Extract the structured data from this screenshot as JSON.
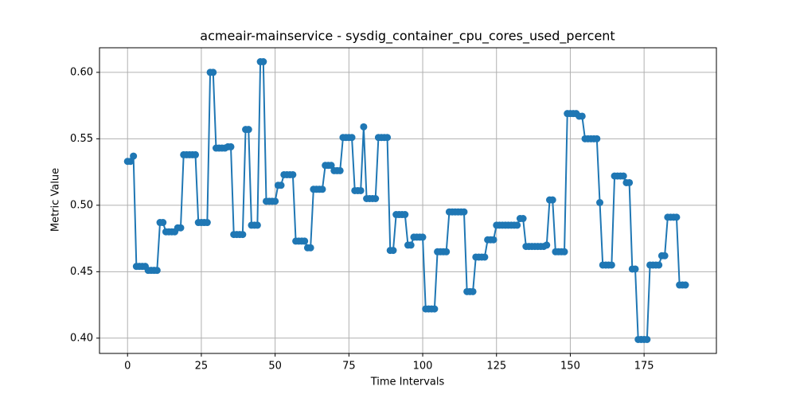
{
  "chart_data": {
    "type": "line",
    "title": "acmeair-mainservice - sysdig_container_cpu_cores_used_percent",
    "x_label": "Time Intervals",
    "y_label": "Metric Value",
    "x": [
      0,
      1,
      2,
      3,
      4,
      5,
      6,
      7,
      8,
      9,
      10,
      11,
      12,
      13,
      14,
      15,
      16,
      17,
      18,
      19,
      20,
      21,
      22,
      23,
      24,
      25,
      26,
      27,
      28,
      29,
      30,
      31,
      32,
      33,
      34,
      35,
      36,
      37,
      38,
      39,
      40,
      41,
      42,
      43,
      44,
      45,
      46,
      47,
      48,
      49,
      50,
      51,
      52,
      53,
      54,
      55,
      56,
      57,
      58,
      59,
      60,
      61,
      62,
      63,
      64,
      65,
      66,
      67,
      68,
      69,
      70,
      71,
      72,
      73,
      74,
      75,
      76,
      77,
      78,
      79,
      80,
      81,
      82,
      83,
      84,
      85,
      86,
      87,
      88,
      89,
      90,
      91,
      92,
      93,
      94,
      95,
      96,
      97,
      98,
      99,
      100,
      101,
      102,
      103,
      104,
      105,
      106,
      107,
      108,
      109,
      110,
      111,
      112,
      113,
      114,
      115,
      116,
      117,
      118,
      119,
      120,
      121,
      122,
      123,
      124,
      125,
      126,
      127,
      128,
      129,
      130,
      131,
      132,
      133,
      134,
      135,
      136,
      137,
      138,
      139,
      140,
      141,
      142,
      143,
      144,
      145,
      146,
      147,
      148,
      149,
      150,
      151,
      152,
      153,
      154,
      155,
      156,
      157,
      158,
      159,
      160,
      161,
      162,
      163,
      164,
      165,
      166,
      167,
      168,
      169,
      170,
      171,
      172,
      173,
      174,
      175,
      176,
      177,
      178,
      179,
      180,
      181,
      182,
      183,
      184,
      185,
      186,
      187,
      188,
      189
    ],
    "series": [
      {
        "name": "acmeair-mainservice",
        "color": "#1f77b4",
        "values": [
          0.533,
          0.533,
          0.537,
          0.454,
          0.454,
          0.454,
          0.454,
          0.451,
          0.451,
          0.451,
          0.451,
          0.487,
          0.487,
          0.48,
          0.48,
          0.48,
          0.48,
          0.483,
          0.483,
          0.538,
          0.538,
          0.538,
          0.538,
          0.538,
          0.487,
          0.487,
          0.487,
          0.487,
          0.6,
          0.6,
          0.543,
          0.543,
          0.543,
          0.543,
          0.544,
          0.544,
          0.478,
          0.478,
          0.478,
          0.478,
          0.557,
          0.557,
          0.485,
          0.485,
          0.485,
          0.608,
          0.608,
          0.503,
          0.503,
          0.503,
          0.503,
          0.515,
          0.515,
          0.523,
          0.523,
          0.523,
          0.523,
          0.473,
          0.473,
          0.473,
          0.473,
          0.468,
          0.468,
          0.512,
          0.512,
          0.512,
          0.512,
          0.53,
          0.53,
          0.53,
          0.526,
          0.526,
          0.526,
          0.551,
          0.551,
          0.551,
          0.551,
          0.511,
          0.511,
          0.511,
          0.559,
          0.505,
          0.505,
          0.505,
          0.505,
          0.551,
          0.551,
          0.551,
          0.551,
          0.466,
          0.466,
          0.493,
          0.493,
          0.493,
          0.493,
          0.47,
          0.47,
          0.476,
          0.476,
          0.476,
          0.476,
          0.422,
          0.422,
          0.422,
          0.422,
          0.465,
          0.465,
          0.465,
          0.465,
          0.495,
          0.495,
          0.495,
          0.495,
          0.495,
          0.495,
          0.435,
          0.435,
          0.435,
          0.461,
          0.461,
          0.461,
          0.461,
          0.474,
          0.474,
          0.474,
          0.485,
          0.485,
          0.485,
          0.485,
          0.485,
          0.485,
          0.485,
          0.485,
          0.49,
          0.49,
          0.469,
          0.469,
          0.469,
          0.469,
          0.469,
          0.469,
          0.469,
          0.47,
          0.504,
          0.504,
          0.465,
          0.465,
          0.465,
          0.465,
          0.569,
          0.569,
          0.569,
          0.569,
          0.567,
          0.567,
          0.55,
          0.55,
          0.55,
          0.55,
          0.55,
          0.502,
          0.455,
          0.455,
          0.455,
          0.455,
          0.522,
          0.522,
          0.522,
          0.522,
          0.517,
          0.517,
          0.452,
          0.452,
          0.399,
          0.399,
          0.399,
          0.399,
          0.455,
          0.455,
          0.455,
          0.455,
          0.462,
          0.462,
          0.491,
          0.491,
          0.491,
          0.491,
          0.44,
          0.44,
          0.44
        ]
      }
    ],
    "xlim": [
      -9.5,
      199.5
    ],
    "ylim": [
      0.3885,
      0.6185
    ],
    "xticks": [
      0,
      25,
      50,
      75,
      100,
      125,
      150,
      175
    ],
    "yticks": [
      {
        "value": 0.4,
        "label": "0.40"
      },
      {
        "value": 0.45,
        "label": "0.45"
      },
      {
        "value": 0.5,
        "label": "0.50"
      },
      {
        "value": 0.55,
        "label": "0.55"
      },
      {
        "value": 0.6,
        "label": "0.60"
      }
    ],
    "grid": true,
    "markers": true
  }
}
